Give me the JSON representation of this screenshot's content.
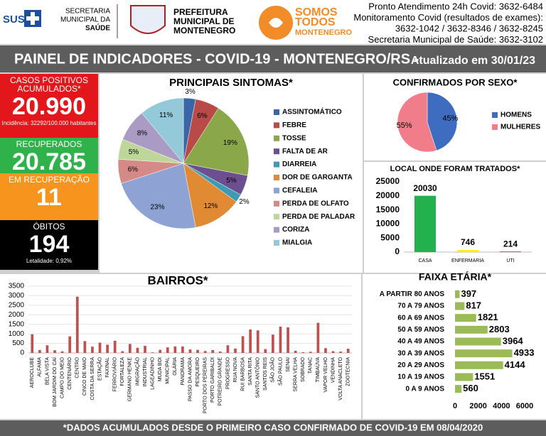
{
  "header": {
    "sus": "SUS",
    "secretaria": [
      "SECRETARIA",
      "MUNICIPAL DA",
      "SAÚDE"
    ],
    "prefeitura": [
      "PREFEITURA",
      "MUNICIPAL DE",
      "MONTENEGRO"
    ],
    "campaign": [
      "SOMOS",
      "TODOS",
      "MONTENEGRO"
    ],
    "contacts": [
      "Pronto Atendimento 24h Covid: 3632-6484",
      "Monitoramento Covid (resultados de exames):",
      "3632-1042 / 3632-8346 / 3632-8245",
      "Secretaria Municipal de Saúde: 3632-3102"
    ]
  },
  "banner": {
    "title": "PAINEL DE INDICADORES - COVID-19 - MONTENEGRO/RS -",
    "updated": "Atualizado em 30/01/23"
  },
  "indicators": [
    {
      "label": "CASOS POSITIVOS ACUMULADOS*",
      "value": "20.990",
      "note": "Incidência: 32292/100.000 habitantes",
      "color": "#e3161b"
    },
    {
      "label": "RECUPERADOS",
      "value": "20.785",
      "color": "#2fb24a"
    },
    {
      "label": "EM RECUPERAÇÃO",
      "value": "11",
      "color": "#f7941d"
    },
    {
      "label": "ÓBITOS",
      "value": "194",
      "note": "Letalidade: 0,92%",
      "color": "#000000"
    }
  ],
  "chart_data": [
    {
      "type": "pie",
      "title": "PRINCIPAIS SINTOMAS*",
      "categories": [
        "ASSINTOMÁTICO",
        "FEBRE",
        "TOSSE",
        "FALTA DE AR",
        "DIARREIA",
        "DOR DE GARGANTA",
        "CEFALEIA",
        "PERDA DE OLFATO",
        "PERDA DE PALADAR",
        "CORIZA",
        "MIALGIA"
      ],
      "values": [
        3,
        6,
        19,
        5,
        2,
        12,
        23,
        6,
        5,
        8,
        11
      ],
      "value_labels": [
        "3%",
        "6%",
        "19%",
        "5%",
        "2%",
        "12%",
        "23%",
        "6%",
        "5%",
        "8%",
        "11%"
      ],
      "colors": [
        "#3a66a8",
        "#b84a47",
        "#8aa84a",
        "#6c4f8f",
        "#3d9bb3",
        "#e08a33",
        "#8ea3d3",
        "#d58a88",
        "#bfd69a",
        "#a99bc3",
        "#93c9d8"
      ]
    },
    {
      "type": "pie",
      "title": "CONFIRMADOS POR SEXO*",
      "categories": [
        "HOMENS",
        "MULHERES"
      ],
      "values": [
        45,
        55
      ],
      "value_labels": [
        "45%",
        "55%"
      ],
      "colors": [
        "#3d6cc0",
        "#f27d8a"
      ]
    },
    {
      "type": "bar",
      "title": "LOCAL ONDE FORAM TRATADOS*",
      "categories": [
        "CASA",
        "ENFERMARIA",
        "UTI"
      ],
      "values": [
        20030,
        746,
        214
      ],
      "colors": [
        "#22b14c",
        "#fff200",
        "#e03a3a"
      ],
      "ylim": [
        0,
        25000
      ],
      "yticks": [
        0,
        5000,
        10000,
        15000,
        20000,
        25000
      ],
      "grid": false,
      "data_labels": true
    },
    {
      "type": "bar",
      "title": "BAIRROS*",
      "categories": [
        "AEROCLUBE",
        "ALFAMA",
        "BELA VISTA",
        "BOM JARDIM DO CAÍ",
        "CAMPO DO MEIO",
        "CENTENÁRIO",
        "CENTRO",
        "CINCO DE MAIO",
        "COSTA DA SERRA",
        "ESTAÇÃO",
        "FAXINAL",
        "FERROVIÁRIO",
        "FORTALEZA",
        "GERMANO HENKE",
        "IMIGRAÇÃO",
        "INDUSTRIAL",
        "LAGEADINHO",
        "MUDA BOI",
        "MUNICIPAL",
        "OLÁRIA",
        "PANORAMA",
        "PASSO DA AMORA",
        "PESQUEIRO",
        "PORTO DOS PEREIRAS",
        "PORTO GARIBALDI",
        "POTREIRO GRANDE",
        "PROGRESSO",
        "RUA NOVA",
        "RUI BARBOSA",
        "SANTA RITA",
        "SANTO ANTÔNIO",
        "SANTOS REIS",
        "SÃO JOÃO",
        "SÃO PAULO",
        "SENAI",
        "SERRA VELHA",
        "SOBRADO",
        "TANAC",
        "TIMBAÚVA",
        "VAPOR VELHO",
        "VENDINHA",
        "VOLTA ANACLETO",
        "ZOOTECNIA"
      ],
      "values": [
        980,
        150,
        400,
        140,
        80,
        870,
        2950,
        620,
        330,
        540,
        430,
        640,
        90,
        470,
        270,
        370,
        30,
        160,
        290,
        340,
        340,
        180,
        160,
        100,
        150,
        70,
        400,
        230,
        880,
        1230,
        1180,
        200,
        960,
        1380,
        1340,
        110,
        40,
        60,
        1580,
        250,
        90,
        70,
        220
      ],
      "color": "#c0504d",
      "ylim": [
        0,
        3500
      ],
      "yticks": [
        0,
        500,
        1000,
        1500,
        2000,
        2500,
        3000,
        3500
      ],
      "grid": true,
      "data_labels": false
    },
    {
      "type": "barh",
      "title": "FAIXA ETÁRIA*",
      "categories": [
        "A PARTIR 80 ANOS",
        "70 A 79 ANOS",
        "60 A 69 ANOS",
        "50 A 59 ANOS",
        "40 A 49 ANOS",
        "30 A 39 ANOS",
        "20 A 29 ANOS",
        "10 A 19 ANOS",
        "0 A 9 ANOS"
      ],
      "values": [
        397,
        817,
        1821,
        2803,
        3964,
        4933,
        4144,
        1551,
        560
      ],
      "color": "#9bbb59",
      "xlim": [
        0,
        6000
      ],
      "xticks": [
        0,
        2000,
        4000,
        6000
      ],
      "data_labels": true
    }
  ],
  "footer": "*DADOS ACUMULADOS DESDE O PRIMEIRO CASO CONFIRMADO DE COVID-19 EM 08/04/2020"
}
